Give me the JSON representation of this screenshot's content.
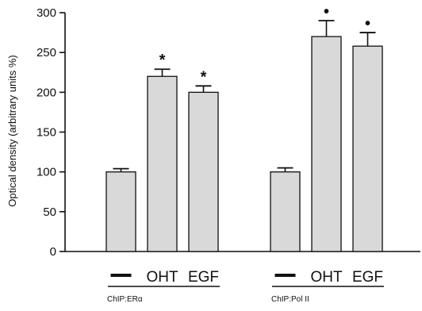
{
  "chart_data": {
    "type": "bar",
    "ylabel": "Optical density (arbitrary units %)",
    "ylim": [
      0,
      300
    ],
    "yticks": [
      0,
      50,
      100,
      150,
      200,
      250,
      300
    ],
    "bar_color": "#d9d9d9",
    "groups": [
      {
        "label": "ChIP:ERα",
        "categories": [
          "",
          "OHT",
          "EGF"
        ],
        "values": [
          100,
          220,
          200
        ],
        "errors": [
          4,
          9,
          8
        ],
        "markers": [
          "",
          "asterisk",
          "asterisk"
        ]
      },
      {
        "label": "ChIP:Pol II",
        "categories": [
          "",
          "OHT",
          "EGF"
        ],
        "values": [
          100,
          270,
          258
        ],
        "errors": [
          5,
          20,
          17
        ],
        "markers": [
          "",
          "dot",
          "dot"
        ]
      }
    ],
    "marker_symbols": {
      "asterisk": "*",
      "dot": "•"
    }
  }
}
